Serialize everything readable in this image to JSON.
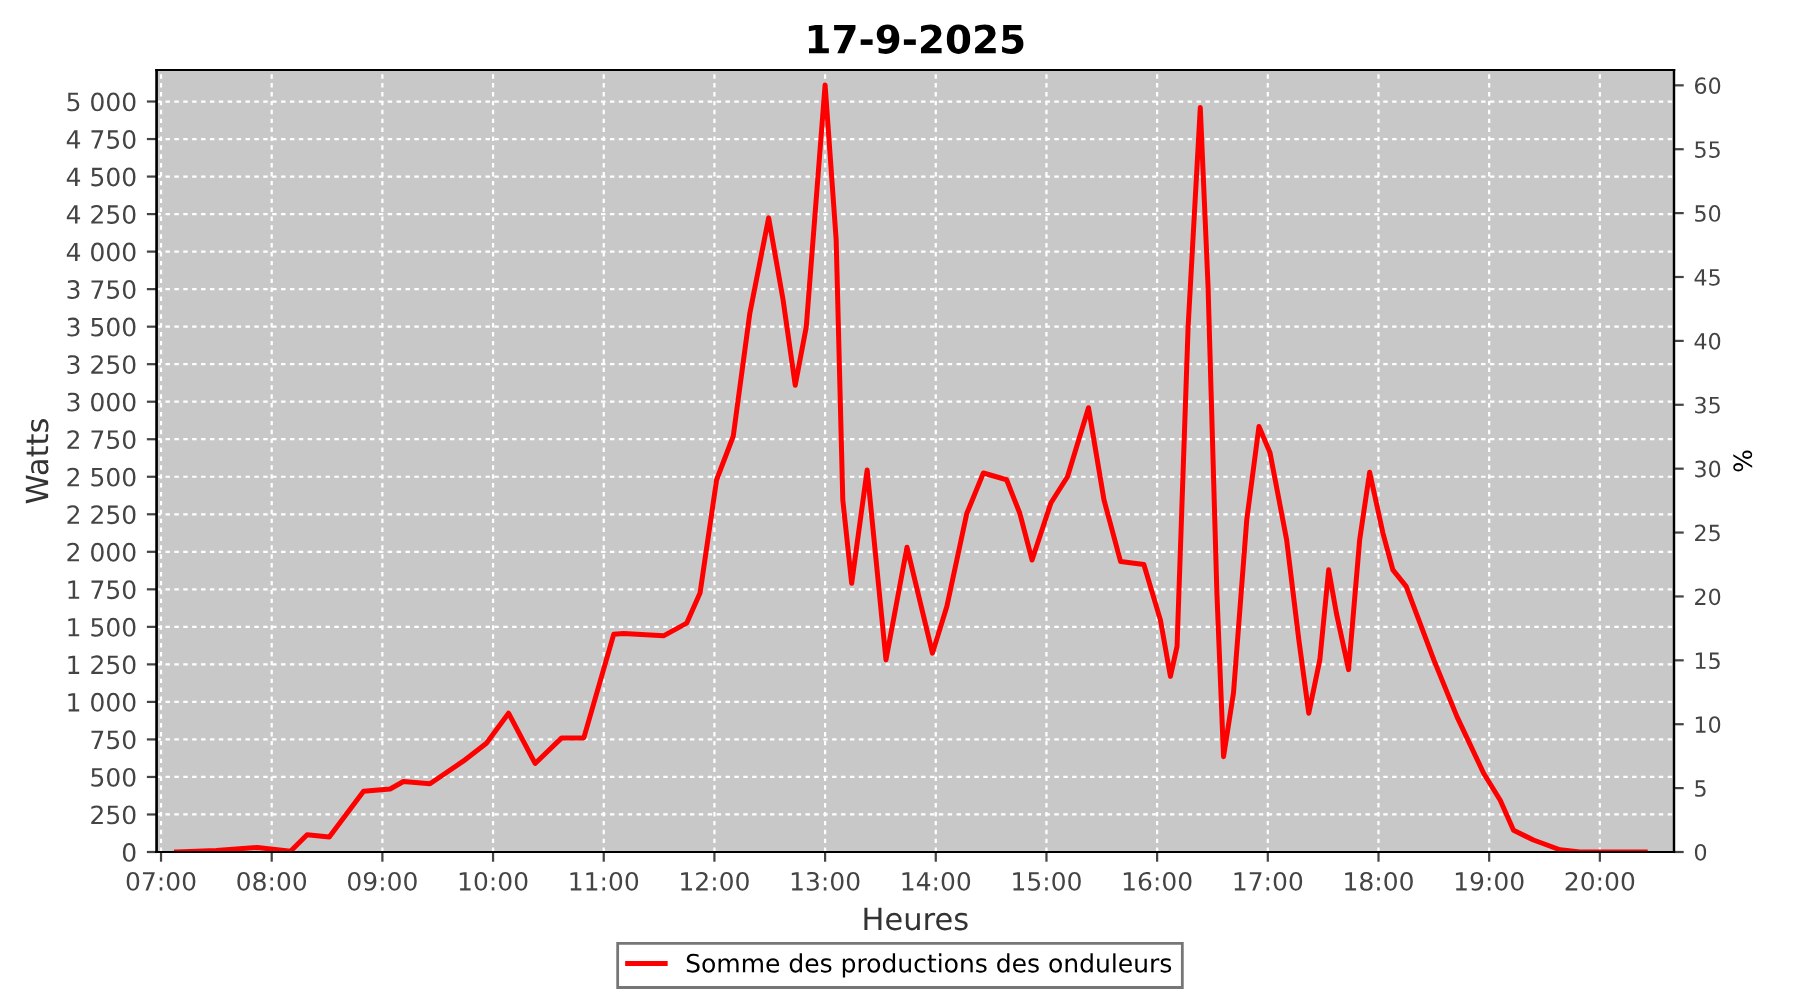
{
  "chart_data": {
    "type": "line",
    "title": "17-9-2025",
    "xlabel": "Heures",
    "ylabel": "Watts",
    "y2label": "%",
    "xlim": [
      6.96,
      20.67
    ],
    "xticks": [
      {
        "value": 7,
        "label": "07:00"
      },
      {
        "value": 8,
        "label": "08:00"
      },
      {
        "value": 9,
        "label": "09:00"
      },
      {
        "value": 10,
        "label": "10:00"
      },
      {
        "value": 11,
        "label": "11:00"
      },
      {
        "value": 12,
        "label": "12:00"
      },
      {
        "value": 13,
        "label": "13:00"
      },
      {
        "value": 14,
        "label": "14:00"
      },
      {
        "value": 15,
        "label": "15:00"
      },
      {
        "value": 16,
        "label": "16:00"
      },
      {
        "value": 17,
        "label": "17:00"
      },
      {
        "value": 18,
        "label": "18:00"
      },
      {
        "value": 19,
        "label": "19:00"
      },
      {
        "value": 20,
        "label": "20:00"
      }
    ],
    "ylim": [
      0,
      5210
    ],
    "yticks": [
      0,
      250,
      500,
      750,
      {
        "value": 1000,
        "label": "1 000"
      },
      {
        "value": 1250,
        "label": "1 250"
      },
      {
        "value": 1500,
        "label": "1 500"
      },
      {
        "value": 1750,
        "label": "1 750"
      },
      {
        "value": 2000,
        "label": "2 000"
      },
      {
        "value": 2250,
        "label": "2 250"
      },
      {
        "value": 2500,
        "label": "2 500"
      },
      {
        "value": 2750,
        "label": "2 750"
      },
      {
        "value": 3000,
        "label": "3 000"
      },
      {
        "value": 3250,
        "label": "3 250"
      },
      {
        "value": 3500,
        "label": "3 500"
      },
      {
        "value": 3750,
        "label": "3 750"
      },
      {
        "value": 4000,
        "label": "4 000"
      },
      {
        "value": 4250,
        "label": "4 250"
      },
      {
        "value": 4500,
        "label": "4 500"
      },
      {
        "value": 4750,
        "label": "4 750"
      },
      {
        "value": 5000,
        "label": "5 000"
      }
    ],
    "y2lim": [
      0,
      61.2
    ],
    "y2ticks": [
      0,
      5,
      10,
      15,
      20,
      25,
      30,
      35,
      40,
      45,
      50,
      55,
      60
    ],
    "grid": true,
    "legend": "bottom",
    "marker": "none",
    "line_style": "solid",
    "series": [
      {
        "name": "Somme des productions des onduleurs",
        "color": "#ff0000",
        "x": [
          7.14,
          7.5,
          7.87,
          8.17,
          8.32,
          8.52,
          8.83,
          9.07,
          9.19,
          9.43,
          9.73,
          9.94,
          10.14,
          10.38,
          10.62,
          10.82,
          11.09,
          11.18,
          11.54,
          11.75,
          11.87,
          12.02,
          12.17,
          12.32,
          12.49,
          12.62,
          12.73,
          12.83,
          13.0,
          13.1,
          13.16,
          13.24,
          13.38,
          13.55,
          13.74,
          13.97,
          14.1,
          14.28,
          14.43,
          14.64,
          14.76,
          14.87,
          15.04,
          15.19,
          15.38,
          15.52,
          15.67,
          15.88,
          16.03,
          16.12,
          16.18,
          16.28,
          16.39,
          16.46,
          16.54,
          16.6,
          16.69,
          16.81,
          16.92,
          17.02,
          17.17,
          17.28,
          17.37,
          17.47,
          17.55,
          17.62,
          17.73,
          17.83,
          17.92,
          18.04,
          18.13,
          18.25,
          18.5,
          18.71,
          18.95,
          19.1,
          19.22,
          19.4,
          19.64,
          19.82,
          20.41
        ],
        "values": [
          0,
          10,
          30,
          5,
          115,
          100,
          405,
          420,
          470,
          455,
          605,
          725,
          925,
          590,
          760,
          760,
          1450,
          1455,
          1440,
          1525,
          1725,
          2480,
          2770,
          3590,
          4225,
          3680,
          3110,
          3500,
          5110,
          4080,
          2345,
          1790,
          2545,
          1280,
          2030,
          1325,
          1635,
          2255,
          2525,
          2480,
          2255,
          1945,
          2325,
          2500,
          2960,
          2345,
          1935,
          1915,
          1545,
          1170,
          1370,
          3500,
          4960,
          3770,
          1725,
          635,
          1060,
          2215,
          2835,
          2660,
          2080,
          1415,
          925,
          1280,
          1880,
          1590,
          1215,
          2080,
          2530,
          2125,
          1880,
          1770,
          1280,
          900,
          525,
          345,
          145,
          80,
          15,
          0,
          0
        ]
      }
    ]
  }
}
